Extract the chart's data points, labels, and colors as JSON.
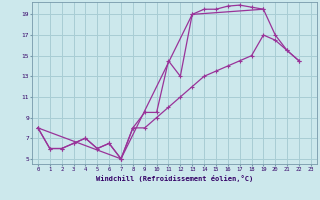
{
  "xlabel": "Windchill (Refroidissement éolien,°C)",
  "bg_color": "#cce8ec",
  "grid_color": "#a8cdd4",
  "line_color": "#993399",
  "series1": [
    [
      0,
      8.0
    ],
    [
      1,
      6.0
    ],
    [
      2,
      6.0
    ],
    [
      3,
      6.5
    ],
    [
      4,
      7.0
    ],
    [
      5,
      6.0
    ],
    [
      6,
      6.5
    ],
    [
      7,
      5.0
    ],
    [
      8,
      8.0
    ],
    [
      9,
      9.5
    ],
    [
      10,
      9.5
    ],
    [
      11,
      14.5
    ],
    [
      12,
      13.0
    ],
    [
      13,
      19.0
    ],
    [
      14,
      19.5
    ],
    [
      15,
      19.5
    ],
    [
      16,
      19.8
    ],
    [
      17,
      19.9
    ],
    [
      18,
      19.7
    ],
    [
      19,
      19.5
    ]
  ],
  "series2": [
    [
      0,
      8.0
    ],
    [
      1,
      6.0
    ],
    [
      2,
      6.0
    ],
    [
      3,
      6.5
    ],
    [
      4,
      7.0
    ],
    [
      5,
      6.0
    ],
    [
      6,
      6.5
    ],
    [
      7,
      5.0
    ],
    [
      8,
      8.0
    ],
    [
      9,
      8.0
    ],
    [
      10,
      9.0
    ],
    [
      11,
      10.0
    ],
    [
      12,
      11.0
    ],
    [
      13,
      12.0
    ],
    [
      14,
      13.0
    ],
    [
      15,
      13.5
    ],
    [
      16,
      14.0
    ],
    [
      17,
      14.5
    ],
    [
      18,
      15.0
    ],
    [
      19,
      17.0
    ],
    [
      20,
      16.5
    ],
    [
      21,
      15.5
    ],
    [
      22,
      14.5
    ]
  ],
  "series3": [
    [
      0,
      8.0
    ],
    [
      7,
      5.0
    ],
    [
      13,
      19.0
    ],
    [
      19,
      19.5
    ],
    [
      20,
      17.0
    ],
    [
      21,
      15.5
    ],
    [
      22,
      14.5
    ]
  ],
  "xlim": [
    -0.5,
    23.5
  ],
  "ylim": [
    4.5,
    20.2
  ],
  "yticks": [
    5,
    7,
    9,
    11,
    13,
    15,
    17,
    19
  ],
  "xticks": [
    0,
    1,
    2,
    3,
    4,
    5,
    6,
    7,
    8,
    9,
    10,
    11,
    12,
    13,
    14,
    15,
    16,
    17,
    18,
    19,
    20,
    21,
    22,
    23
  ]
}
